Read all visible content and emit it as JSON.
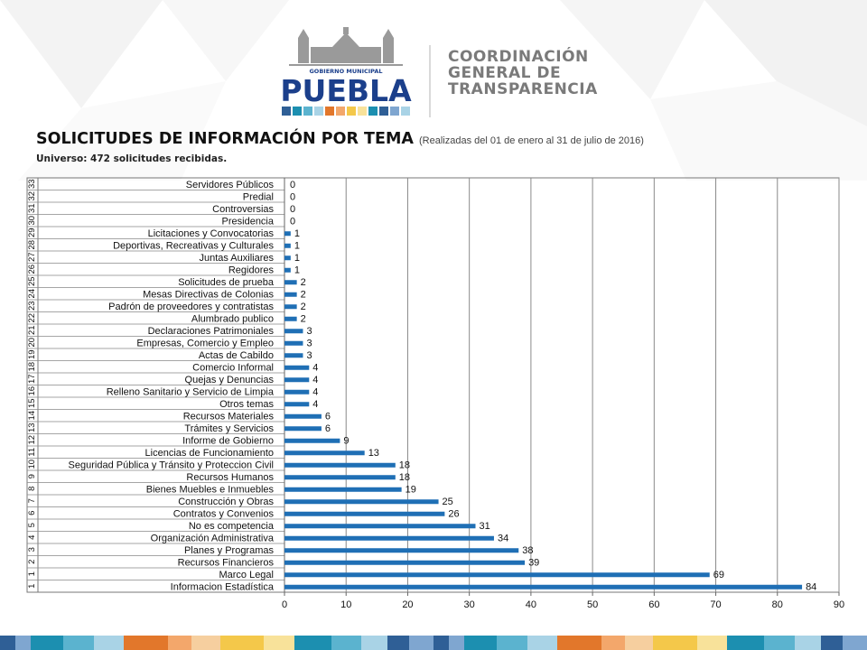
{
  "header": {
    "logo_small_text": "GOBIERNO MUNICIPAL",
    "logo_big_text": "PUEBLA",
    "org_line1": "COORDINACIÓN",
    "org_line2": "GENERAL DE",
    "org_line3": "TRANSPARENCIA"
  },
  "slide": {
    "title_main": "SOLICITUDES DE INFORMACIÓN POR TEMA",
    "title_sub": "(Realizadas del 01 de enero al 31 de julio de 2016)",
    "universe": "Universo: 472 solicitudes recibidas."
  },
  "colors": {
    "bar": "#1f6fb5",
    "logo_blue": "#1b3f8b",
    "footer": [
      "#2f5f96",
      "#7fa6d0",
      "#1c8fb0",
      "#5bb3cf",
      "#a9d3e6",
      "#e2772b",
      "#f3a76b",
      "#f6cf9f",
      "#f4c84a",
      "#f8e29a",
      "#1c8fb0",
      "#5bb3cf",
      "#a9d3e6",
      "#2f5f96",
      "#7fa6d0"
    ]
  },
  "chart_data": {
    "type": "bar",
    "orientation": "horizontal",
    "xlim": [
      0,
      90
    ],
    "x_ticks": [
      "0",
      "10",
      "20",
      "30",
      "40",
      "50",
      "60",
      "70",
      "80",
      "90"
    ],
    "grid": true,
    "categories": [
      "Servidores Públicos",
      "Predial",
      "Controversias",
      "Presidencia",
      "Licitaciones y Convocatorias",
      "Deportivas, Recreativas y Culturales",
      "Juntas Auxiliares",
      "Regidores",
      "Solicitudes de prueba",
      "Mesas Directivas de Colonias",
      "Padrón de proveedores y contratistas",
      "Alumbrado publico",
      "Declaraciones Patrimoniales",
      "Empresas, Comercio y Empleo",
      "Actas de Cabildo",
      "Comercio Informal",
      "Quejas y Denuncias",
      "Relleno Sanitario y Servicio de Limpia",
      "Otros temas",
      "Recursos Materiales",
      "Trámites y Servicios",
      "Informe de Gobierno",
      "Licencias de Funcionamiento",
      "Seguridad Pública y Tránsito y Proteccion Civil",
      "Recursos Humanos",
      "Bienes Muebles e Inmuebles",
      "Construcción y Obras",
      "Contratos y Convenios",
      "No es competencia",
      "Organización Administrativa",
      "Planes y Programas",
      "Recursos Financieros",
      "Marco Legal",
      "Informacion Estadística"
    ],
    "indices": [
      "33",
      "32",
      "31",
      "30",
      "29",
      "28",
      "27",
      "26",
      "25",
      "24",
      "23",
      "22",
      "21",
      "20",
      "19",
      "18",
      "17",
      "16",
      "15",
      "14",
      "13",
      "12",
      "11",
      "10",
      "9",
      "8",
      "7",
      "6",
      "5",
      "4",
      "3",
      "2",
      "1",
      "1"
    ],
    "values": [
      0,
      0,
      0,
      0,
      1,
      1,
      1,
      1,
      2,
      2,
      2,
      2,
      3,
      3,
      3,
      4,
      4,
      4,
      4,
      6,
      6,
      9,
      13,
      18,
      18,
      19,
      25,
      26,
      31,
      34,
      38,
      39,
      69,
      84
    ]
  }
}
